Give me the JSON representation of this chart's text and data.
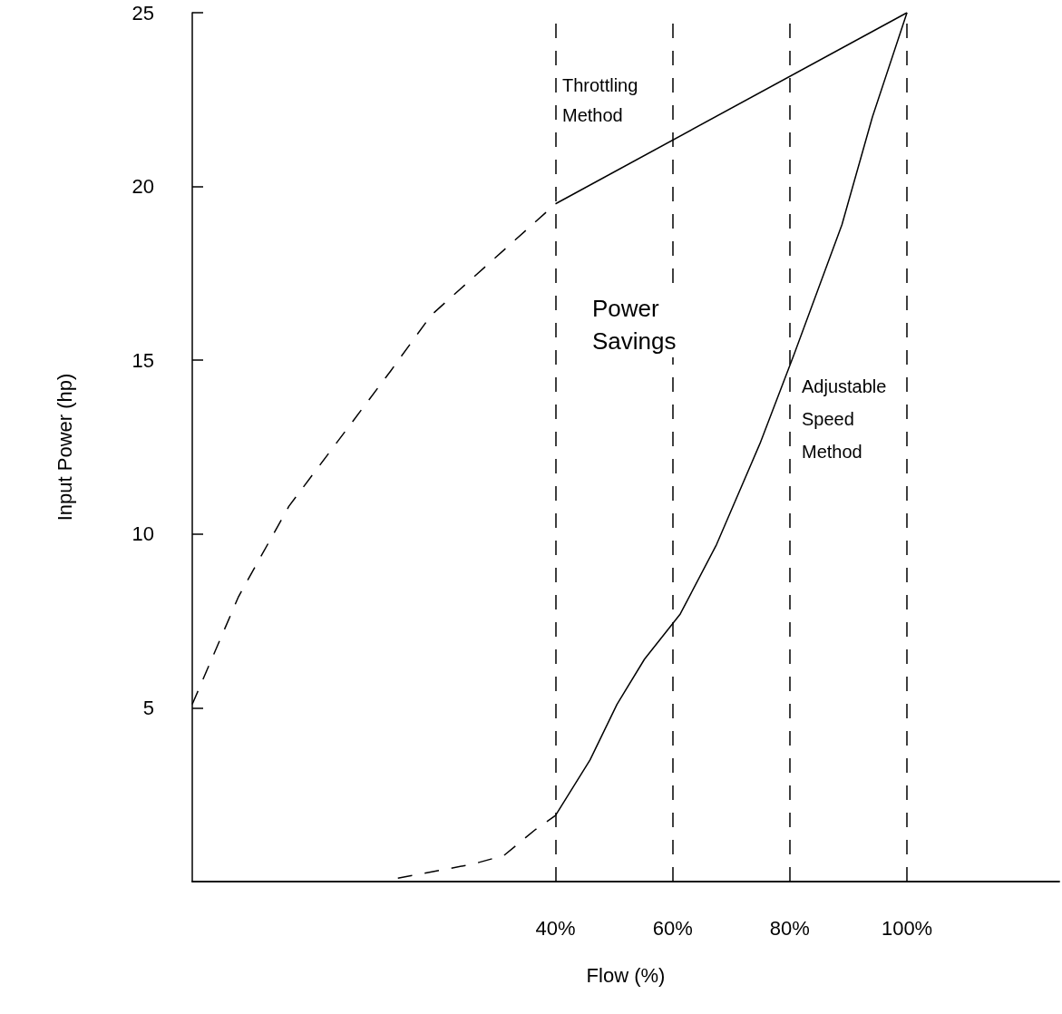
{
  "chart_data": {
    "type": "line",
    "xlabel": "Flow (%)",
    "ylabel": "Input Power (hp)",
    "xlim": [
      -22,
      126
    ],
    "ylim": [
      0,
      25
    ],
    "xticks": [
      {
        "value": 40,
        "label": "40%"
      },
      {
        "value": 60,
        "label": "60%"
      },
      {
        "value": 80,
        "label": "80%"
      },
      {
        "value": 100,
        "label": "100%"
      }
    ],
    "yticks": [
      5,
      10,
      15,
      20,
      25
    ],
    "grid": false,
    "marker": "none",
    "series": [
      {
        "color": "#000000",
        "line_style": "dashed",
        "x": [
          -22,
          -14.1,
          -5.5,
          11.9,
          18.8,
          40
        ],
        "values": [
          5.1,
          8.2,
          10.8,
          14.7,
          16.3,
          19.5
        ]
      },
      {
        "color": "#000000",
        "line_style": "solid",
        "x": [
          40,
          100
        ],
        "values": [
          19.5,
          25
        ]
      },
      {
        "color": "#000000",
        "line_style": "dashed",
        "x": [
          13.1,
          25.8,
          31.2,
          36.6,
          40
        ],
        "values": [
          0.1,
          0.5,
          0.75,
          1.5,
          1.9
        ]
      },
      {
        "color": "#000000",
        "line_style": "solid",
        "x": [
          40,
          45.9,
          50.5,
          55.2,
          61.3,
          67.5,
          74.9,
          80.8,
          88.9,
          94.1,
          100
        ],
        "values": [
          1.9,
          3.5,
          5.1,
          6.4,
          7.7,
          9.7,
          12.6,
          15.2,
          18.9,
          22,
          25
        ]
      }
    ],
    "ref_lines": [
      {
        "axis": "x",
        "value": 40,
        "line_style": "dashed",
        "color": "#000000"
      },
      {
        "axis": "x",
        "value": 60,
        "line_style": "dashed",
        "color": "#000000"
      },
      {
        "axis": "x",
        "value": 80,
        "line_style": "dashed",
        "color": "#000000"
      },
      {
        "axis": "x",
        "value": 100,
        "line_style": "dashed",
        "color": "#000000"
      }
    ],
    "annotations": [
      "Throttling\nMethod",
      "Power\nSavings",
      "Adjustable\nSpeed\nMethod"
    ]
  }
}
